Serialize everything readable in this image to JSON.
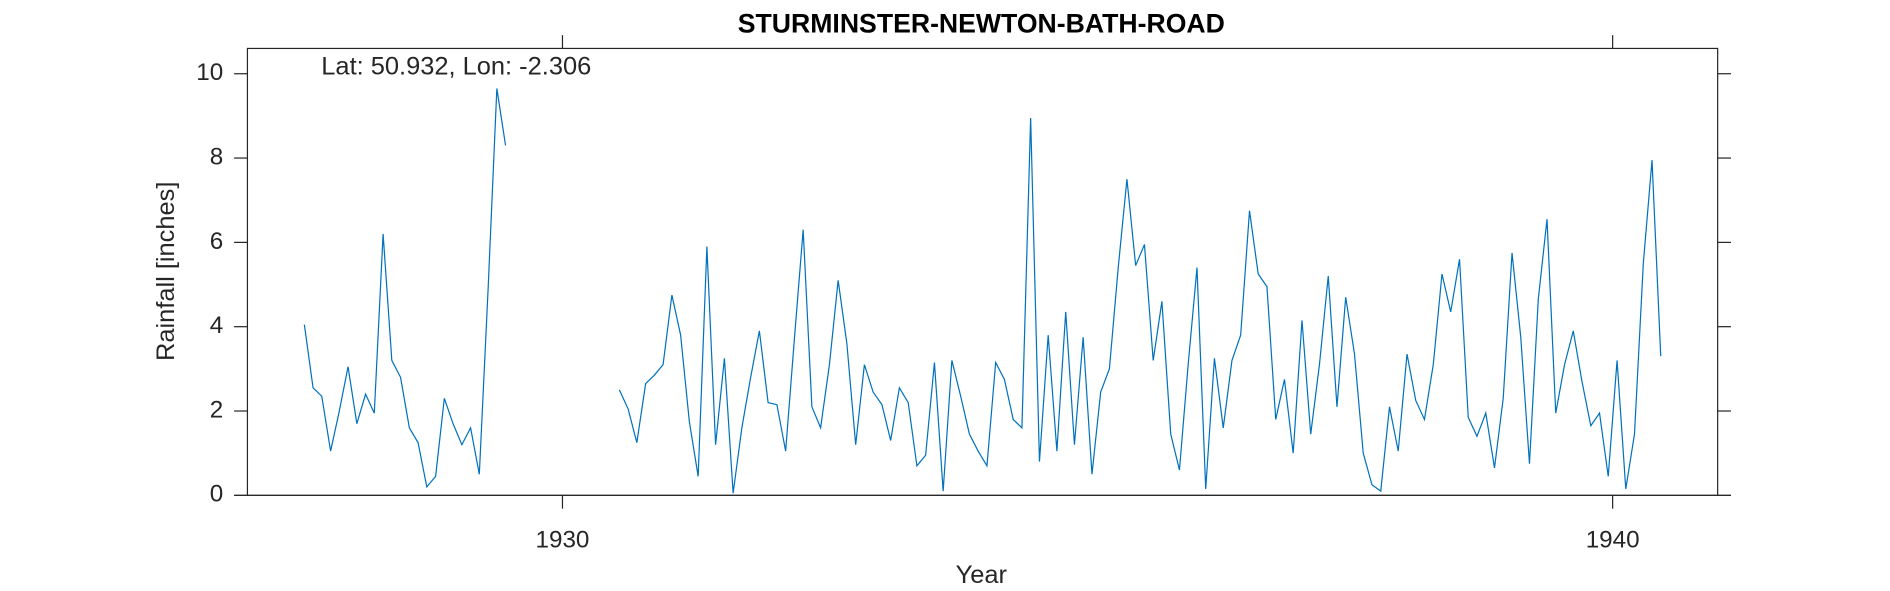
{
  "chart_data": {
    "type": "line",
    "title": "STURMINSTER-NEWTON-BATH-ROAD",
    "annotation": "Lat: 50.932, Lon: -2.306",
    "xlabel": "Year",
    "ylabel": "Rainfall [inches]",
    "xlim": [
      1927.0,
      1941.0
    ],
    "xticks": [
      1930,
      1940
    ],
    "ylim": [
      0,
      10.6
    ],
    "yticks": [
      0,
      2,
      4,
      6,
      8,
      10
    ],
    "grid": false,
    "series": [
      {
        "color": "#0072bd",
        "x": [
          1927.542,
          1927.625,
          1927.708,
          1927.792,
          1927.875,
          1927.958,
          1928.042,
          1928.125,
          1928.208,
          1928.292,
          1928.375,
          1928.458,
          1928.542,
          1928.625,
          1928.708,
          1928.792,
          1928.875,
          1928.958,
          1929.042,
          1929.125,
          1929.208,
          1929.292,
          1929.375,
          1929.458,
          1929.542,
          1929.625,
          1929.708,
          1929.792,
          1929.875,
          1929.958,
          1930.042,
          1930.125,
          1930.208,
          1930.292,
          1930.375,
          1930.458,
          1930.542,
          1930.625,
          1930.708,
          1930.792,
          1930.875,
          1930.958,
          1931.042,
          1931.125,
          1931.208,
          1931.292,
          1931.375,
          1931.458,
          1931.542,
          1931.625,
          1931.708,
          1931.792,
          1931.875,
          1931.958,
          1932.042,
          1932.125,
          1932.208,
          1932.292,
          1932.375,
          1932.458,
          1932.542,
          1932.625,
          1932.708,
          1932.792,
          1932.875,
          1932.958,
          1933.042,
          1933.125,
          1933.208,
          1933.292,
          1933.375,
          1933.458,
          1933.542,
          1933.625,
          1933.708,
          1933.792,
          1933.875,
          1933.958,
          1934.042,
          1934.125,
          1934.208,
          1934.292,
          1934.375,
          1934.458,
          1934.542,
          1934.625,
          1934.708,
          1934.792,
          1934.875,
          1934.958,
          1935.042,
          1935.125,
          1935.208,
          1935.292,
          1935.375,
          1935.458,
          1935.542,
          1935.625,
          1935.708,
          1935.792,
          1935.875,
          1935.958,
          1936.042,
          1936.125,
          1936.208,
          1936.292,
          1936.375,
          1936.458,
          1936.542,
          1936.625,
          1936.708,
          1936.792,
          1936.875,
          1936.958,
          1937.042,
          1937.125,
          1937.208,
          1937.292,
          1937.375,
          1937.458,
          1937.542,
          1937.625,
          1937.708,
          1937.792,
          1937.875,
          1937.958,
          1938.042,
          1938.125,
          1938.208,
          1938.292,
          1938.375,
          1938.458,
          1938.542,
          1938.625,
          1938.708,
          1938.792,
          1938.875,
          1938.958,
          1939.042,
          1939.125,
          1939.208,
          1939.292,
          1939.375,
          1939.458,
          1939.542,
          1939.625,
          1939.708,
          1939.792,
          1939.875,
          1939.958,
          1940.042,
          1940.125,
          1940.208,
          1940.292,
          1940.375,
          1940.458
        ],
        "values": [
          4.05,
          2.55,
          2.35,
          1.05,
          2.0,
          3.05,
          1.7,
          2.4,
          1.95,
          6.2,
          3.2,
          2.8,
          1.6,
          1.25,
          0.2,
          0.45,
          2.3,
          1.7,
          1.2,
          1.6,
          0.5,
          4.9,
          9.65,
          8.3,
          null,
          null,
          null,
          null,
          null,
          null,
          null,
          null,
          null,
          null,
          null,
          null,
          2.5,
          2.05,
          1.25,
          2.65,
          2.85,
          3.1,
          4.75,
          3.8,
          1.75,
          0.45,
          5.9,
          1.2,
          3.25,
          0.05,
          1.6,
          2.8,
          3.9,
          2.2,
          2.15,
          1.05,
          3.7,
          6.3,
          2.1,
          1.6,
          3.1,
          5.1,
          3.6,
          1.2,
          3.1,
          2.45,
          2.15,
          1.3,
          2.55,
          2.2,
          0.7,
          0.95,
          3.15,
          0.1,
          3.2,
          2.35,
          1.45,
          1.05,
          0.7,
          3.15,
          2.75,
          1.8,
          1.6,
          8.95,
          0.8,
          3.8,
          1.05,
          4.35,
          1.2,
          3.75,
          0.5,
          2.45,
          3.0,
          5.4,
          7.5,
          5.45,
          5.95,
          3.2,
          4.6,
          1.45,
          0.6,
          3.1,
          5.4,
          0.15,
          3.25,
          1.6,
          3.2,
          3.8,
          6.75,
          5.25,
          4.95,
          1.8,
          2.75,
          1.0,
          4.15,
          1.45,
          3.1,
          5.2,
          2.1,
          4.7,
          3.35,
          1.0,
          0.25,
          0.1,
          2.1,
          1.05,
          3.35,
          2.25,
          1.8,
          3.1,
          5.25,
          4.35,
          5.6,
          1.85,
          1.4,
          1.95,
          0.65,
          2.3,
          5.75,
          3.75,
          0.75,
          4.65,
          6.55,
          1.95,
          3.1,
          3.9,
          2.7,
          1.65,
          1.95,
          0.45,
          3.2,
          0.15,
          1.45,
          5.5,
          7.95,
          3.3
        ]
      }
    ]
  }
}
